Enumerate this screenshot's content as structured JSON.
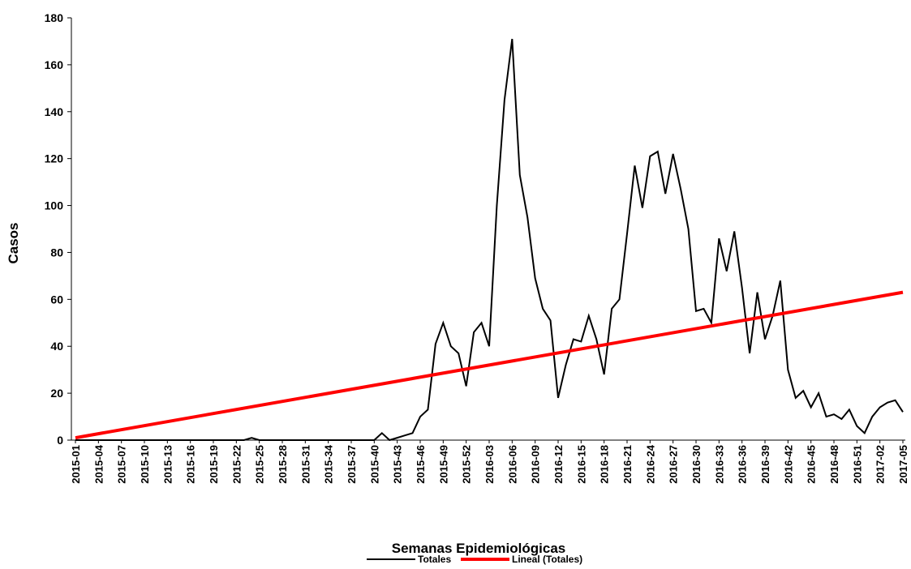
{
  "chart_data": {
    "type": "line",
    "y_label": "Casos",
    "x_label": "Semanas Epidemiológicas",
    "categories": [
      "2015-01",
      null,
      null,
      "2015-04",
      null,
      null,
      "2015-07",
      null,
      null,
      "2015-10",
      null,
      null,
      "2015-13",
      null,
      null,
      "2015-16",
      null,
      null,
      "2015-19",
      null,
      null,
      "2015-22",
      null,
      null,
      "2015-25",
      null,
      null,
      "2015-28",
      null,
      null,
      "2015-31",
      null,
      null,
      "2015-34",
      null,
      null,
      "2015-37",
      null,
      null,
      "2015-40",
      null,
      null,
      "2015-43",
      null,
      null,
      "2015-46",
      null,
      null,
      "2015-49",
      null,
      null,
      "2015-52",
      null,
      null,
      "2016-03",
      null,
      null,
      "2016-06",
      null,
      null,
      "2016-09",
      null,
      null,
      "2016-12",
      null,
      null,
      "2016-15",
      null,
      null,
      "2016-18",
      null,
      null,
      "2016-21",
      null,
      null,
      "2016-24",
      null,
      null,
      "2016-27",
      null,
      null,
      "2016-30",
      null,
      null,
      "2016-33",
      null,
      null,
      "2016-36",
      null,
      null,
      "2016-39",
      null,
      null,
      "2016-42",
      null,
      null,
      "2016-45",
      null,
      null,
      "2016-48",
      null,
      null,
      "2016-51",
      null,
      null,
      "2017-02",
      null,
      null,
      "2017-05"
    ],
    "series": [
      {
        "name": "Totales",
        "color": "#000000",
        "values": [
          0,
          0,
          0,
          0,
          0,
          0,
          0,
          0,
          0,
          0,
          0,
          0,
          0,
          0,
          0,
          0,
          0,
          0,
          0,
          0,
          0,
          0,
          0,
          1,
          0,
          0,
          0,
          0,
          0,
          0,
          0,
          0,
          0,
          0,
          0,
          0,
          0,
          0,
          0,
          0,
          3,
          0,
          1,
          2,
          3,
          10,
          13,
          41,
          50,
          40,
          37,
          23,
          46,
          50,
          40,
          100,
          145,
          171,
          113,
          95,
          69,
          56,
          51,
          18,
          32,
          43,
          42,
          53,
          43,
          28,
          56,
          60,
          88,
          117,
          99,
          121,
          123,
          105,
          122,
          107,
          90,
          55,
          56,
          50,
          86,
          72,
          89,
          65,
          37,
          63,
          43,
          53,
          68,
          30,
          18,
          21,
          14,
          20,
          10,
          11,
          9,
          13,
          6,
          3,
          10,
          14,
          16,
          17,
          12
        ]
      }
    ],
    "trendline": {
      "name": "Lineal (Totales)",
      "color": "#ff0000",
      "from": 1,
      "to": 63
    },
    "ylim": [
      0,
      180
    ],
    "yticks": [
      0,
      20,
      40,
      60,
      80,
      100,
      120,
      140,
      160,
      180
    ],
    "grid": false
  }
}
